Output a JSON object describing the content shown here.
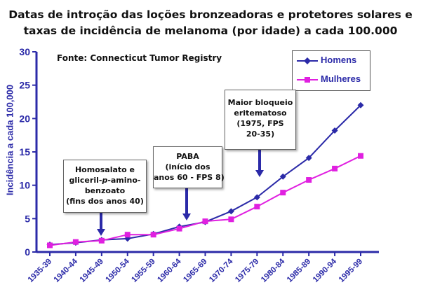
{
  "chart_data": {
    "type": "line",
    "title_lines": [
      "Datas de introção das loções bronzeadoras e protetores solares e",
      "taxas de incidência de melanoma (por idade) a cada 100.000"
    ],
    "source": "Fonte: Connecticut Tumor Registry",
    "ylabel": "Incidência a cada 100,000",
    "xlabel": "",
    "ylim": [
      0,
      30
    ],
    "yticks": [
      "0",
      "5",
      "10",
      "15",
      "20",
      "25",
      "30"
    ],
    "categories": [
      "1935-39",
      "1940-44",
      "1945-49",
      "1950-54",
      "1955-59",
      "1960-64",
      "1965-69",
      "1970-74",
      "1975-79",
      "1980-84",
      "1985-89",
      "1990-94",
      "1995-99"
    ],
    "legend_position": "top-right",
    "grid": false,
    "series": [
      {
        "name": "Homens",
        "marker": "diamond",
        "color": "#2b2aa8",
        "values": [
          1.1,
          1.4,
          1.8,
          2.0,
          2.7,
          3.8,
          4.5,
          6.1,
          8.2,
          11.3,
          14.1,
          18.2,
          22.0
        ]
      },
      {
        "name": "Mulheres",
        "marker": "square",
        "color": "#e020e0",
        "values": [
          1.0,
          1.5,
          1.7,
          2.6,
          2.6,
          3.5,
          4.6,
          4.9,
          6.8,
          8.9,
          10.8,
          12.5,
          14.4
        ]
      }
    ],
    "annotations": [
      {
        "lines": [
          "Homosalato e",
          "gliceril-p-amino-",
          "benzoato",
          "(fins dos anos 40)"
        ]
      },
      {
        "lines": [
          "PABA",
          "(início dos",
          "anos 60 - FPS 8)"
        ]
      },
      {
        "lines": [
          "Maior bloqueio",
          "eritematoso",
          "(1975, FPS",
          "20-35)"
        ]
      }
    ],
    "axis_color": "#2b2aa8"
  }
}
